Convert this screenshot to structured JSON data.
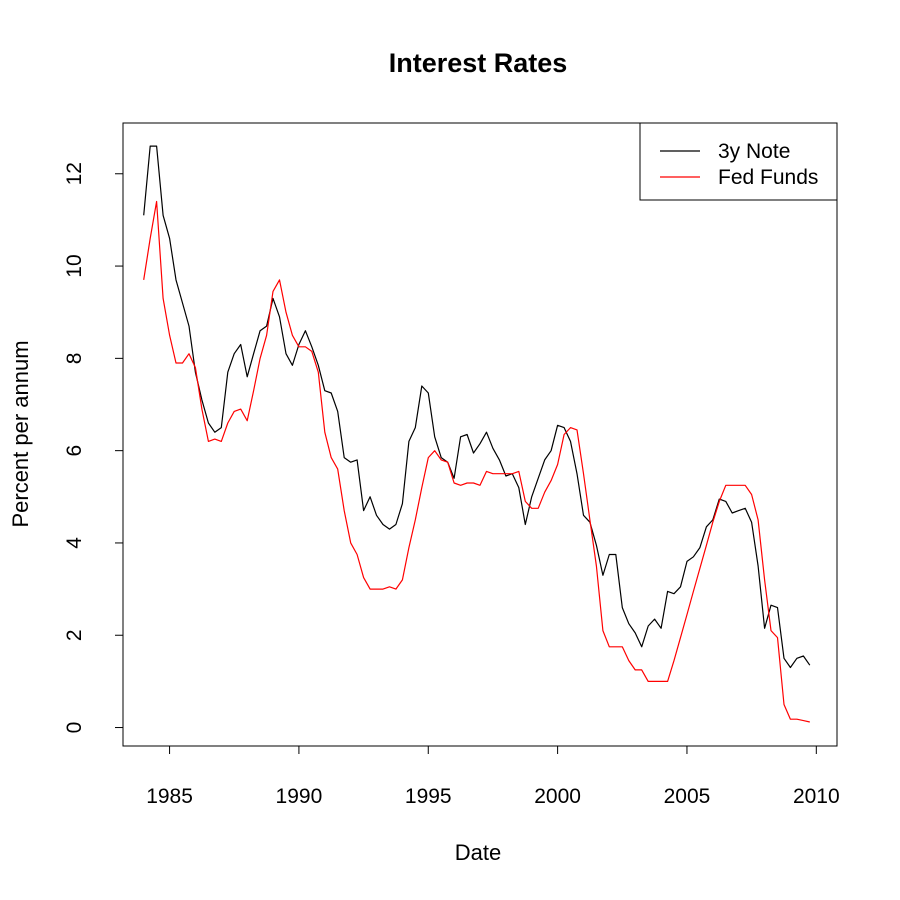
{
  "chart_data": {
    "type": "line",
    "title": "Interest Rates",
    "xlabel": "Date",
    "ylabel": "Percent per annum",
    "xlim": [
      1983.2,
      2010.8
    ],
    "ylim": [
      -0.4,
      13.1
    ],
    "xticks": [
      1985,
      1990,
      1995,
      2000,
      2005,
      2010
    ],
    "yticks": [
      0,
      2,
      4,
      6,
      8,
      10,
      12
    ],
    "grid": false,
    "legend_position": "top-right",
    "x": [
      1984.0,
      1984.25,
      1984.5,
      1984.75,
      1985.0,
      1985.25,
      1985.5,
      1985.75,
      1986.0,
      1986.25,
      1986.5,
      1986.75,
      1987.0,
      1987.25,
      1987.5,
      1987.75,
      1988.0,
      1988.25,
      1988.5,
      1988.75,
      1989.0,
      1989.25,
      1989.5,
      1989.75,
      1990.0,
      1990.25,
      1990.5,
      1990.75,
      1991.0,
      1991.25,
      1991.5,
      1991.75,
      1992.0,
      1992.25,
      1992.5,
      1992.75,
      1993.0,
      1993.25,
      1993.5,
      1993.75,
      1994.0,
      1994.25,
      1994.5,
      1994.75,
      1995.0,
      1995.25,
      1995.5,
      1995.75,
      1996.0,
      1996.25,
      1996.5,
      1996.75,
      1997.0,
      1997.25,
      1997.5,
      1997.75,
      1998.0,
      1998.25,
      1998.5,
      1998.75,
      1999.0,
      1999.25,
      1999.5,
      1999.75,
      2000.0,
      2000.25,
      2000.5,
      2000.75,
      2001.0,
      2001.25,
      2001.5,
      2001.75,
      2002.0,
      2002.25,
      2002.5,
      2002.75,
      2003.0,
      2003.25,
      2003.5,
      2003.75,
      2004.0,
      2004.25,
      2004.5,
      2004.75,
      2005.0,
      2005.25,
      2005.5,
      2005.75,
      2006.0,
      2006.25,
      2006.5,
      2006.75,
      2007.0,
      2007.25,
      2007.5,
      2007.75,
      2008.0,
      2008.25,
      2008.5,
      2008.75,
      2009.0,
      2009.25,
      2009.5,
      2009.75
    ],
    "series": [
      {
        "name": "3y Note",
        "color": "#000000",
        "values": [
          11.1,
          12.6,
          12.6,
          11.1,
          10.6,
          9.7,
          9.2,
          8.7,
          7.7,
          7.1,
          6.6,
          6.4,
          6.5,
          7.7,
          8.1,
          8.3,
          7.6,
          8.1,
          8.6,
          8.7,
          9.3,
          8.9,
          8.1,
          7.85,
          8.3,
          8.6,
          8.25,
          7.85,
          7.3,
          7.25,
          6.85,
          5.85,
          5.75,
          5.8,
          4.7,
          5.0,
          4.6,
          4.4,
          4.3,
          4.4,
          4.85,
          6.2,
          6.5,
          7.4,
          7.25,
          6.3,
          5.85,
          5.75,
          5.4,
          6.3,
          6.35,
          5.95,
          6.15,
          6.4,
          6.05,
          5.8,
          5.45,
          5.5,
          5.2,
          4.4,
          5.0,
          5.4,
          5.8,
          6.0,
          6.55,
          6.5,
          6.2,
          5.5,
          4.6,
          4.45,
          3.95,
          3.3,
          3.75,
          3.75,
          2.6,
          2.25,
          2.05,
          1.75,
          2.2,
          2.35,
          2.15,
          2.95,
          2.9,
          3.05,
          3.6,
          3.7,
          3.9,
          4.35,
          4.5,
          4.95,
          4.9,
          4.65,
          4.7,
          4.75,
          4.45,
          3.5,
          2.15,
          2.65,
          2.6,
          1.5,
          1.3,
          1.5,
          1.55,
          1.35
        ]
      },
      {
        "name": "Fed Funds",
        "color": "#ff0000",
        "values": [
          9.7,
          10.6,
          11.4,
          9.3,
          8.5,
          7.9,
          7.9,
          8.1,
          7.8,
          6.9,
          6.2,
          6.25,
          6.2,
          6.6,
          6.85,
          6.9,
          6.65,
          7.3,
          8.0,
          8.5,
          9.45,
          9.7,
          9.0,
          8.5,
          8.25,
          8.25,
          8.15,
          7.7,
          6.4,
          5.85,
          5.6,
          4.7,
          4.0,
          3.75,
          3.25,
          3.0,
          3.0,
          3.0,
          3.05,
          3.0,
          3.2,
          3.9,
          4.5,
          5.2,
          5.85,
          6.0,
          5.8,
          5.75,
          5.3,
          5.25,
          5.3,
          5.3,
          5.25,
          5.55,
          5.5,
          5.5,
          5.5,
          5.5,
          5.55,
          4.9,
          4.75,
          4.75,
          5.1,
          5.35,
          5.7,
          6.35,
          6.5,
          6.45,
          5.5,
          4.5,
          3.5,
          2.1,
          1.75,
          1.75,
          1.75,
          1.45,
          1.25,
          1.25,
          1.0,
          1.0,
          1.0,
          1.0,
          1.45,
          1.95,
          2.45,
          2.95,
          3.45,
          3.95,
          4.45,
          4.9,
          5.25,
          5.25,
          5.25,
          5.25,
          5.05,
          4.5,
          3.2,
          2.1,
          1.95,
          0.5,
          0.18,
          0.18,
          0.15,
          0.12
        ]
      }
    ]
  }
}
